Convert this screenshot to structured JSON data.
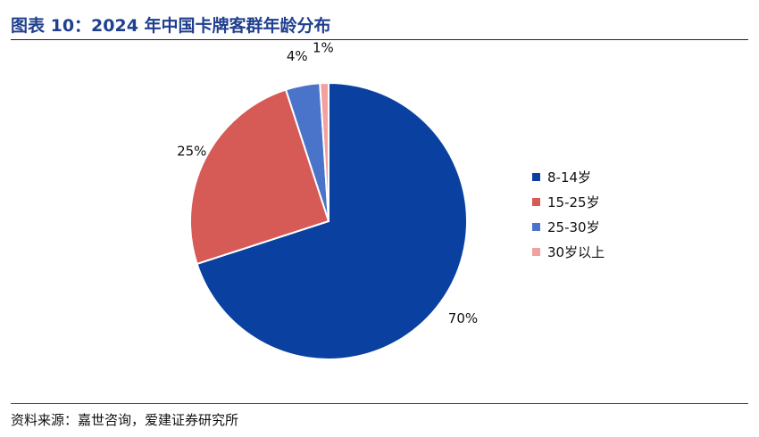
{
  "header": {
    "title": "图表 10：2024 年中国卡牌客群年龄分布"
  },
  "footer": {
    "source": "资料来源：嘉世咨询，爱建证券研究所"
  },
  "chart_data": {
    "type": "pie",
    "title": "",
    "legend_position": "right",
    "start_angle": "top, clockwise",
    "slices": [
      {
        "label": "8-14岁",
        "value": 70,
        "data_label": "70%",
        "color": "#0A41A0"
      },
      {
        "label": "15-25岁",
        "value": 25,
        "data_label": "25%",
        "color": "#D65A55"
      },
      {
        "label": "25-30岁",
        "value": 4,
        "data_label": "4%",
        "color": "#4A74C9"
      },
      {
        "label": "30岁以上",
        "value": 1,
        "data_label": "1%",
        "color": "#F2A0A0"
      }
    ]
  }
}
